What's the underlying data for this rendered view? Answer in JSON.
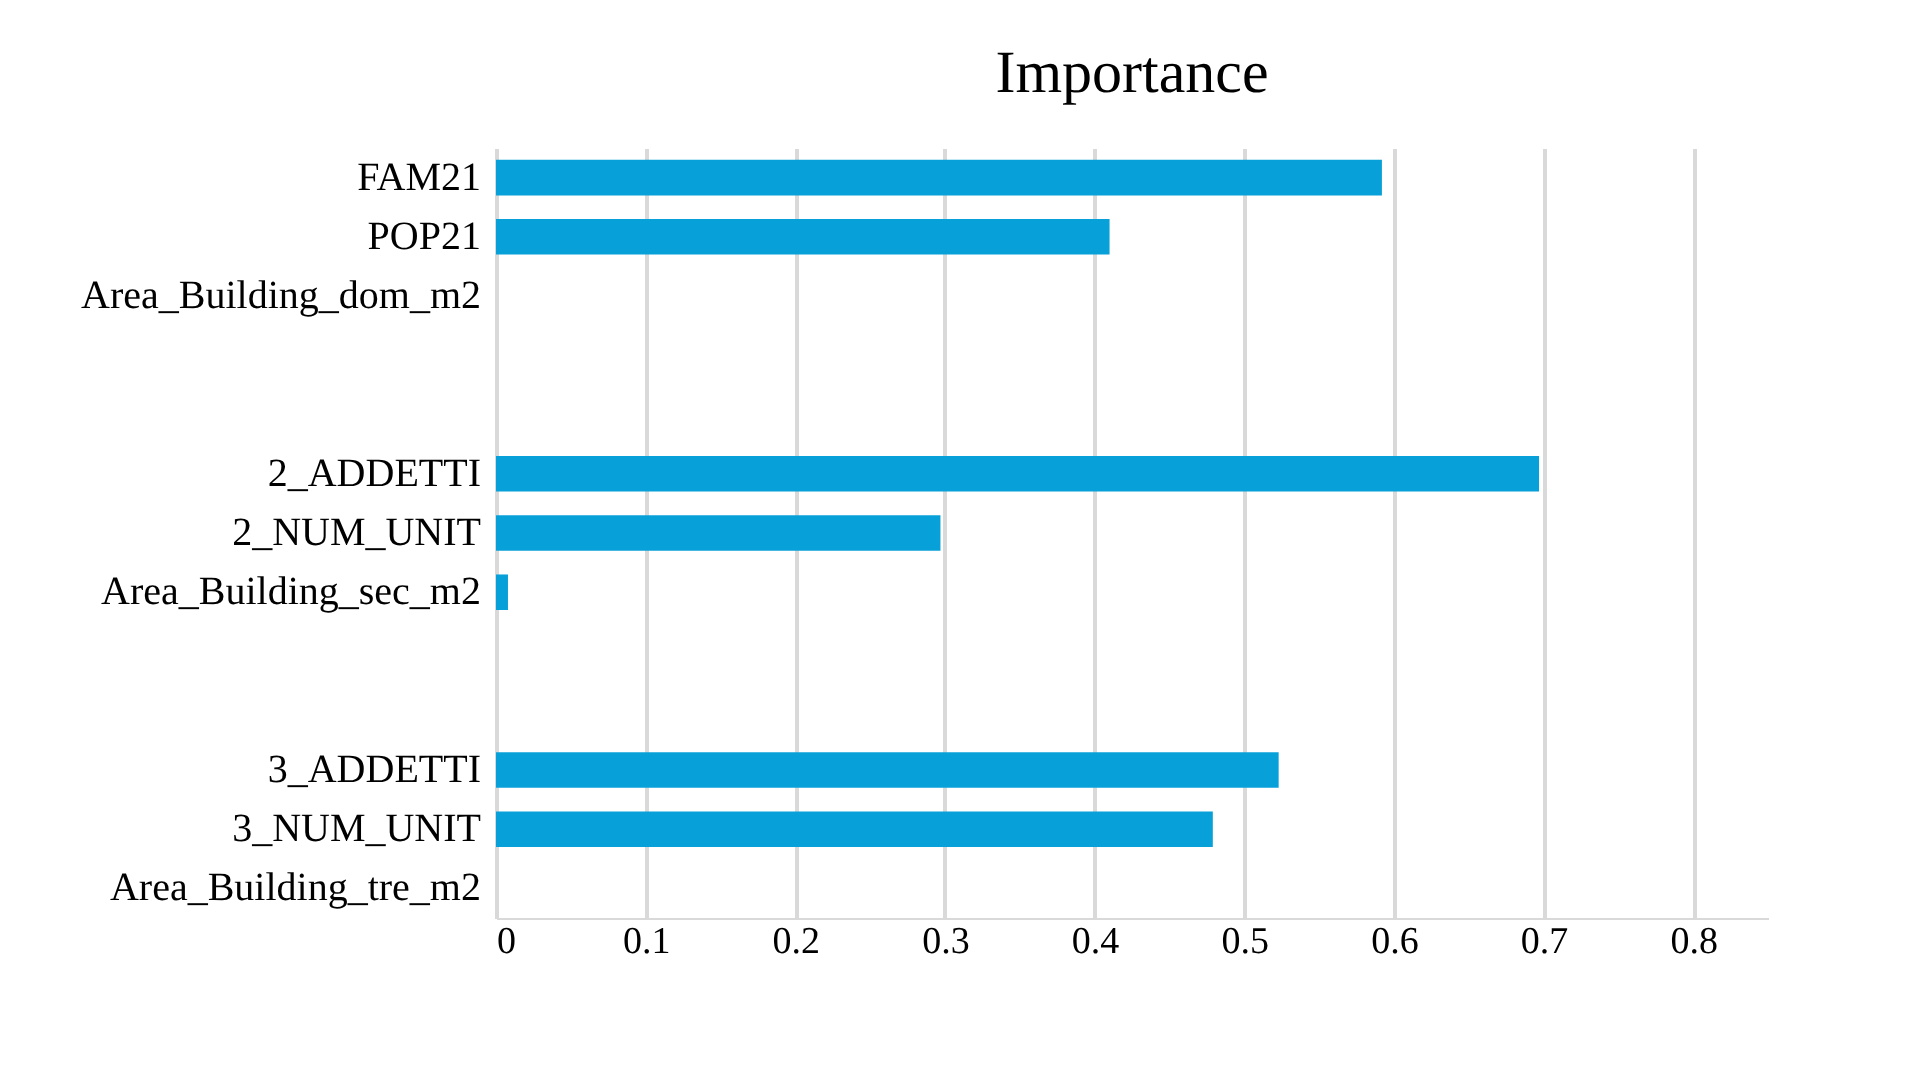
{
  "chart_data": {
    "type": "bar",
    "orientation": "horizontal",
    "title": "Importance",
    "categories": [
      "FAM21",
      "POP21",
      "Area_Building_dom_m2",
      null,
      null,
      "2_ADDETTI",
      "2_NUM_UNIT",
      "Area_Building_sec_m2",
      null,
      null,
      "3_ADDETTI",
      "3_NUM_UNIT",
      "Area_Building_tre_m2"
    ],
    "values": [
      0.592,
      0.41,
      0,
      null,
      null,
      0.697,
      0.297,
      0.008,
      null,
      null,
      0.523,
      0.479,
      0
    ],
    "color": "#08a0d8",
    "xlim": [
      0,
      0.85
    ],
    "xticks": [
      0,
      0.1,
      0.2,
      0.3,
      0.4,
      0.5,
      0.6,
      0.7,
      0.8
    ],
    "grid": "x"
  }
}
